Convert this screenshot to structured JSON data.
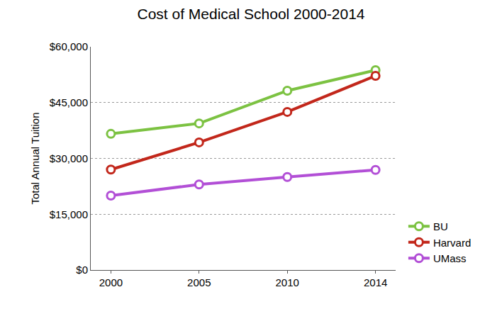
{
  "chart_data": {
    "type": "line",
    "title": "Cost of Medical School 2000-2014",
    "y_label": "Total Annual Tuition",
    "categories": [
      "2000",
      "2005",
      "2010",
      "2014"
    ],
    "series": [
      {
        "name": "BU",
        "color": "#7cc242",
        "values": [
          36600,
          39400,
          48200,
          53700
        ]
      },
      {
        "name": "Harvard",
        "color": "#c2271b",
        "values": [
          27000,
          34300,
          42500,
          52200
        ]
      },
      {
        "name": "UMass",
        "color": "#b24fd6",
        "values": [
          20000,
          23000,
          25000,
          26900
        ]
      }
    ],
    "ylim": [
      0,
      60000
    ],
    "yticks": [
      {
        "value": 0,
        "label": "$0"
      },
      {
        "value": 15000,
        "label": "$15,000"
      },
      {
        "value": 30000,
        "label": "$30,000"
      },
      {
        "value": 45000,
        "label": "$45,000"
      },
      {
        "value": 60000,
        "label": "$60,000"
      }
    ],
    "grid": true,
    "legend": "lower right",
    "marker": "open circle",
    "line_style": "solid"
  }
}
